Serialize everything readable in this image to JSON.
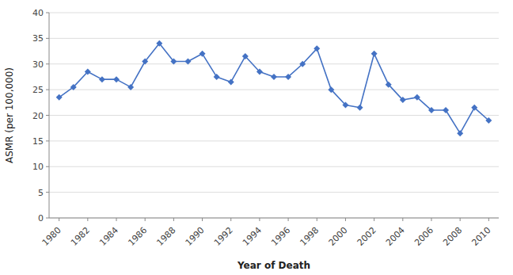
{
  "chart_data": {
    "type": "line",
    "xlabel": "Year of Death",
    "ylabel": "ASMR (per 100,000)",
    "x": [
      1980,
      1981,
      1982,
      1983,
      1984,
      1985,
      1986,
      1987,
      1988,
      1989,
      1990,
      1991,
      1992,
      1993,
      1994,
      1995,
      1996,
      1997,
      1998,
      1999,
      2000,
      2001,
      2002,
      2003,
      2004,
      2005,
      2006,
      2007,
      2008,
      2009,
      2010
    ],
    "values": [
      23.5,
      25.5,
      28.5,
      27.0,
      27.0,
      25.5,
      30.5,
      34.0,
      30.5,
      30.5,
      32.0,
      27.5,
      26.5,
      31.5,
      28.5,
      27.5,
      27.5,
      30.0,
      33.0,
      25.0,
      22.0,
      21.5,
      32.0,
      26.0,
      23.0,
      23.5,
      21.0,
      21.0,
      16.5,
      21.5,
      19.0
    ],
    "color": "#4472C4",
    "marker": "diamond",
    "xlim": [
      1979.3,
      2010.7
    ],
    "xticks": [
      1980,
      1982,
      1984,
      1986,
      1988,
      1990,
      1992,
      1994,
      1996,
      1998,
      2000,
      2002,
      2004,
      2006,
      2008,
      2010
    ],
    "ylim": [
      0,
      40
    ],
    "yticks": [
      0,
      5,
      10,
      15,
      20,
      25,
      30,
      35,
      40
    ],
    "grid": true
  }
}
